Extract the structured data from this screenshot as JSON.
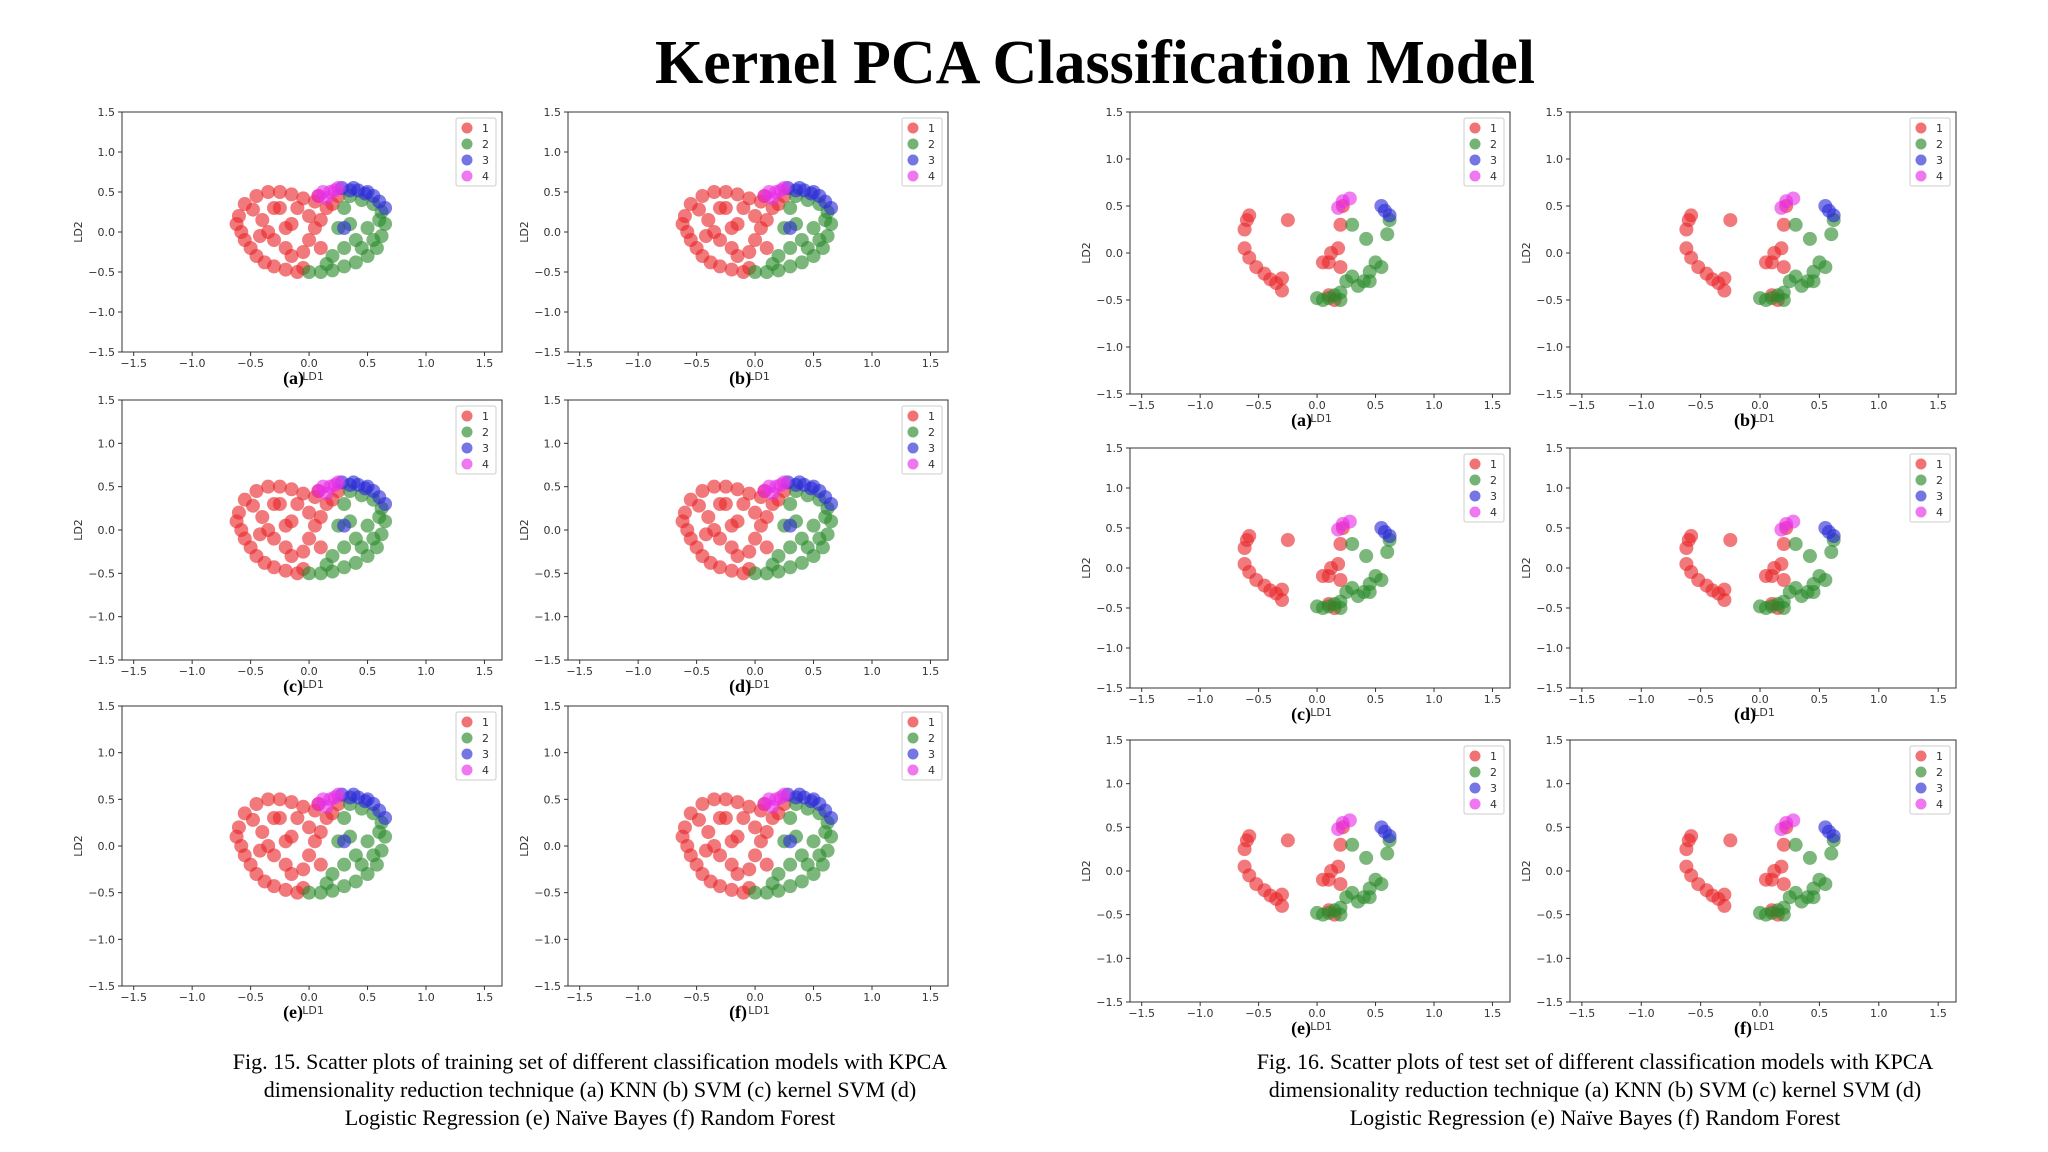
{
  "title": "Kernel PCA Classification Model",
  "axes": {
    "xlabel": "LD1",
    "ylabel": "LD2",
    "xticks": [
      "−1.5",
      "−1.0",
      "−0.5",
      "0.0",
      "0.5",
      "1.0",
      "1.5"
    ],
    "yticks": [
      "1.5",
      "1.0",
      "0.5",
      "0.0",
      "−0.5",
      "−1.0",
      "−1.5"
    ]
  },
  "legend": [
    {
      "label": "1",
      "color": "#e8262a"
    },
    {
      "label": "2",
      "color": "#2a8a2a"
    },
    {
      "label": "3",
      "color": "#2b2bd6"
    },
    {
      "label": "4",
      "color": "#e62ee6"
    }
  ],
  "figures": [
    {
      "id": "fig15",
      "caption": [
        "Fig. 15. Scatter plots of training set of different classification models with KPCA",
        "dimensionality reduction technique (a) KNN (b) SVM (c) kernel SVM (d)",
        "Logistic Regression (e) Naïve Bayes (f) Random Forest"
      ],
      "panel_labels": [
        "(a)",
        "(b)",
        "(c)",
        "(d)",
        "(e)",
        "(f)"
      ]
    },
    {
      "id": "fig16",
      "caption": [
        "Fig. 16. Scatter plots of test set of different classification models with KPCA",
        "dimensionality reduction technique (a) KNN (b) SVM (c) kernel SVM (d)",
        "Logistic Regression (e) Naïve Bayes (f) Random Forest"
      ],
      "panel_labels": [
        "(a)",
        "(b)",
        "(c)",
        "(d)",
        "(e)",
        "(f)"
      ]
    }
  ],
  "chart_data": [
    {
      "type": "scatter",
      "dataset": "training",
      "xlabel": "LD1",
      "ylabel": "LD2",
      "xlim": [
        -1.6,
        1.65
      ],
      "ylim": [
        -1.5,
        1.5
      ],
      "series": [
        {
          "name": "1",
          "color": "#e8262a",
          "points": [
            [
              -0.6,
              0.2
            ],
            [
              -0.62,
              0.1
            ],
            [
              -0.58,
              0.0
            ],
            [
              -0.55,
              -0.1
            ],
            [
              -0.5,
              -0.2
            ],
            [
              -0.45,
              -0.3
            ],
            [
              -0.38,
              -0.38
            ],
            [
              -0.3,
              -0.43
            ],
            [
              -0.2,
              -0.47
            ],
            [
              -0.1,
              -0.5
            ],
            [
              -0.05,
              -0.45
            ],
            [
              -0.55,
              0.35
            ],
            [
              -0.45,
              0.45
            ],
            [
              -0.35,
              0.5
            ],
            [
              -0.25,
              0.5
            ],
            [
              -0.15,
              0.47
            ],
            [
              -0.05,
              0.42
            ],
            [
              0.05,
              0.38
            ],
            [
              -0.48,
              0.28
            ],
            [
              -0.4,
              0.15
            ],
            [
              -0.35,
              0.0
            ],
            [
              -0.3,
              -0.1
            ],
            [
              -0.2,
              -0.2
            ],
            [
              -0.15,
              -0.3
            ],
            [
              -0.1,
              0.3
            ],
            [
              -0.25,
              0.3
            ],
            [
              0.0,
              0.2
            ],
            [
              0.05,
              0.05
            ],
            [
              0.0,
              -0.1
            ],
            [
              -0.05,
              -0.25
            ],
            [
              0.1,
              -0.2
            ],
            [
              0.1,
              0.15
            ],
            [
              -0.15,
              0.1
            ],
            [
              0.15,
              0.3
            ],
            [
              0.2,
              0.35
            ],
            [
              0.25,
              0.45
            ],
            [
              -0.3,
              0.3
            ],
            [
              -0.42,
              -0.05
            ],
            [
              -0.2,
              0.05
            ],
            [
              0.08,
              0.45
            ]
          ]
        },
        {
          "name": "2",
          "color": "#2a8a2a",
          "points": [
            [
              0.0,
              -0.5
            ],
            [
              0.1,
              -0.5
            ],
            [
              0.2,
              -0.48
            ],
            [
              0.3,
              -0.43
            ],
            [
              0.4,
              -0.38
            ],
            [
              0.5,
              -0.3
            ],
            [
              0.58,
              -0.2
            ],
            [
              0.62,
              -0.05
            ],
            [
              0.65,
              0.1
            ],
            [
              0.62,
              0.25
            ],
            [
              0.55,
              0.35
            ],
            [
              0.45,
              0.4
            ],
            [
              0.3,
              0.3
            ],
            [
              0.35,
              0.1
            ],
            [
              0.25,
              0.05
            ],
            [
              0.4,
              -0.1
            ],
            [
              0.3,
              -0.2
            ],
            [
              0.2,
              -0.3
            ],
            [
              0.5,
              0.05
            ],
            [
              0.45,
              -0.2
            ],
            [
              0.15,
              -0.4
            ],
            [
              0.35,
              0.45
            ],
            [
              0.55,
              -0.1
            ],
            [
              0.6,
              0.15
            ]
          ]
        },
        {
          "name": "3",
          "color": "#2b2bd6",
          "points": [
            [
              0.28,
              0.55
            ],
            [
              0.35,
              0.52
            ],
            [
              0.42,
              0.52
            ],
            [
              0.5,
              0.5
            ],
            [
              0.55,
              0.45
            ],
            [
              0.6,
              0.38
            ],
            [
              0.65,
              0.3
            ],
            [
              0.3,
              0.05
            ],
            [
              0.48,
              0.48
            ],
            [
              0.38,
              0.55
            ]
          ]
        },
        {
          "name": "4",
          "color": "#e62ee6",
          "points": [
            [
              0.08,
              0.45
            ],
            [
              0.12,
              0.5
            ],
            [
              0.18,
              0.5
            ],
            [
              0.22,
              0.52
            ],
            [
              0.15,
              0.42
            ],
            [
              0.25,
              0.55
            ]
          ]
        }
      ]
    },
    {
      "type": "scatter",
      "dataset": "test",
      "xlabel": "LD1",
      "ylabel": "LD2",
      "xlim": [
        -1.6,
        1.65
      ],
      "ylim": [
        -1.5,
        1.5
      ],
      "series": [
        {
          "name": "1",
          "color": "#e8262a",
          "points": [
            [
              -0.6,
              0.35
            ],
            [
              -0.58,
              0.4
            ],
            [
              -0.62,
              0.25
            ],
            [
              -0.62,
              0.05
            ],
            [
              -0.58,
              -0.05
            ],
            [
              -0.52,
              -0.15
            ],
            [
              -0.45,
              -0.22
            ],
            [
              -0.4,
              -0.28
            ],
            [
              -0.35,
              -0.32
            ],
            [
              -0.3,
              -0.27
            ],
            [
              -0.3,
              -0.4
            ],
            [
              -0.25,
              0.35
            ],
            [
              0.05,
              -0.1
            ],
            [
              0.1,
              -0.1
            ],
            [
              0.12,
              0.0
            ],
            [
              0.18,
              0.05
            ],
            [
              0.2,
              0.3
            ],
            [
              0.2,
              -0.15
            ],
            [
              0.1,
              -0.45
            ],
            [
              0.15,
              -0.5
            ],
            [
              0.22,
              0.5
            ]
          ]
        },
        {
          "name": "2",
          "color": "#2a8a2a",
          "points": [
            [
              0.0,
              -0.48
            ],
            [
              0.05,
              -0.5
            ],
            [
              0.1,
              -0.48
            ],
            [
              0.15,
              -0.45
            ],
            [
              0.2,
              -0.42
            ],
            [
              0.25,
              -0.3
            ],
            [
              0.3,
              -0.25
            ],
            [
              0.35,
              -0.35
            ],
            [
              0.4,
              -0.3
            ],
            [
              0.45,
              -0.2
            ],
            [
              0.5,
              -0.1
            ],
            [
              0.55,
              -0.15
            ],
            [
              0.6,
              0.2
            ],
            [
              0.62,
              0.35
            ],
            [
              0.3,
              0.3
            ],
            [
              0.42,
              0.15
            ],
            [
              0.45,
              -0.3
            ],
            [
              0.2,
              -0.5
            ]
          ]
        },
        {
          "name": "3",
          "color": "#2b2bd6",
          "points": [
            [
              0.55,
              0.5
            ],
            [
              0.58,
              0.45
            ],
            [
              0.62,
              0.4
            ]
          ]
        },
        {
          "name": "4",
          "color": "#e62ee6",
          "points": [
            [
              0.18,
              0.48
            ],
            [
              0.22,
              0.55
            ],
            [
              0.28,
              0.58
            ]
          ]
        }
      ]
    }
  ]
}
